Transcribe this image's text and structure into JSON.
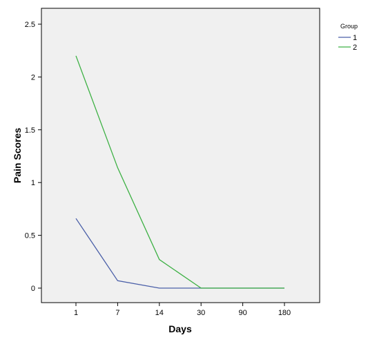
{
  "chart_data": {
    "type": "line",
    "title": "",
    "xlabel": "Days",
    "ylabel": "Pain Scores",
    "categories": [
      "1",
      "7",
      "14",
      "30",
      "90",
      "180"
    ],
    "ylim": [
      0,
      2.6
    ],
    "yticks": [
      "0",
      "0.5",
      "1",
      "1.5",
      "2",
      "2.5"
    ],
    "ytick_values": [
      0,
      0.5,
      1,
      1.5,
      2,
      2.5
    ],
    "grid": false,
    "legend": {
      "title": "Group",
      "placement": "top-right-outside"
    },
    "series": [
      {
        "name": "1",
        "color": "#4a5fa8",
        "values": [
          0.66,
          0.07,
          0.0,
          0.0,
          0.0,
          0.0
        ]
      },
      {
        "name": "2",
        "color": "#3cb043",
        "values": [
          2.2,
          1.14,
          0.27,
          0.0,
          0.0,
          0.0
        ]
      }
    ],
    "plot_background": "#f0f0f0"
  }
}
